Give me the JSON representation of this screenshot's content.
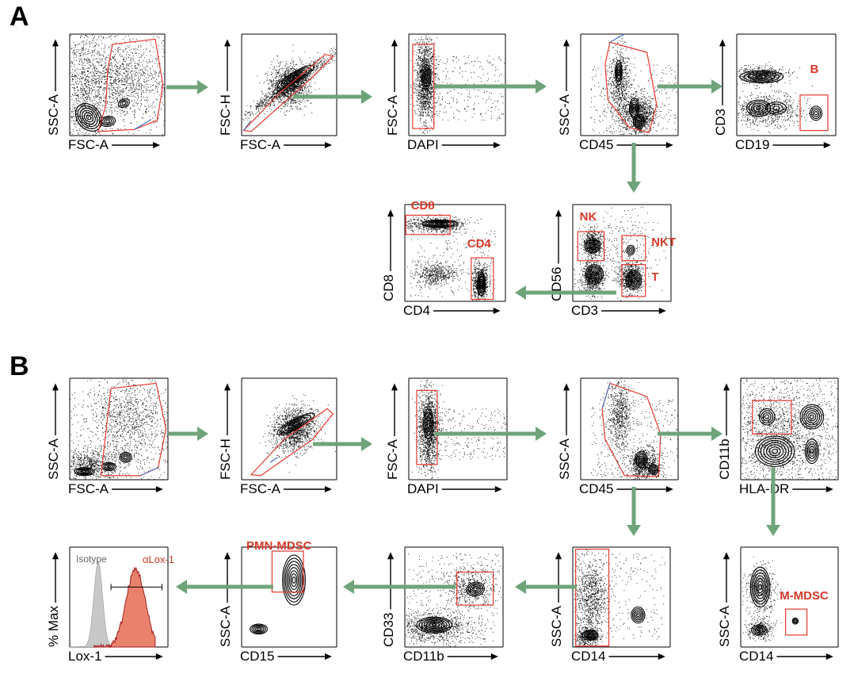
{
  "panels": [
    {
      "letter": "A"
    },
    {
      "letter": "B"
    }
  ],
  "colors": {
    "gate": "#e8392f",
    "gate_label": "#d63a2a",
    "arrow": "#6fa47a",
    "spine": "#4a72c4",
    "isotype_fill": "#c8c8c8",
    "lox_fill": "#e9826d",
    "lox_line": "#a41c1c"
  },
  "plots": [
    {
      "id": "a1",
      "xlabel": "FSC-A",
      "ylabel": "SSC-A",
      "gates": [],
      "type": "scatter"
    },
    {
      "id": "a2",
      "xlabel": "FSC-A",
      "ylabel": "FSC-H",
      "gates": [],
      "type": "scatter"
    },
    {
      "id": "a3",
      "xlabel": "DAPI",
      "ylabel": "FSC-A",
      "gates": [],
      "type": "scatter"
    },
    {
      "id": "a4",
      "xlabel": "CD45",
      "ylabel": "SSC-A",
      "gates": [],
      "type": "scatter"
    },
    {
      "id": "a5",
      "xlabel": "CD19",
      "ylabel": "CD3",
      "gates": [
        "B"
      ],
      "type": "scatter"
    },
    {
      "id": "a6",
      "xlabel": "CD3",
      "ylabel": "CD56",
      "gates": [
        "NK",
        "NKT",
        "T"
      ],
      "type": "scatter"
    },
    {
      "id": "a7",
      "xlabel": "CD4",
      "ylabel": "CD8",
      "gates": [
        "CD8",
        "CD4"
      ],
      "type": "scatter"
    },
    {
      "id": "b1",
      "xlabel": "FSC-A",
      "ylabel": "SSC-A",
      "gates": [],
      "type": "scatter"
    },
    {
      "id": "b2",
      "xlabel": "FSC-A",
      "ylabel": "FSC-H",
      "gates": [],
      "type": "scatter"
    },
    {
      "id": "b3",
      "xlabel": "DAPI",
      "ylabel": "FSC-A",
      "gates": [],
      "type": "scatter"
    },
    {
      "id": "b4",
      "xlabel": "CD45",
      "ylabel": "SSC-A",
      "gates": [],
      "type": "scatter"
    },
    {
      "id": "b5",
      "xlabel": "HLA-DR",
      "ylabel": "CD11b",
      "gates": [],
      "type": "scatter"
    },
    {
      "id": "b6",
      "xlabel": "CD14",
      "ylabel": "SSC-A",
      "gates": [
        "M-MDSC"
      ],
      "type": "scatter"
    },
    {
      "id": "b7",
      "xlabel": "CD14",
      "ylabel": "SSC-A",
      "gates": [],
      "type": "scatter"
    },
    {
      "id": "b8",
      "xlabel": "CD11b",
      "ylabel": "CD33",
      "gates": [],
      "type": "scatter"
    },
    {
      "id": "b9",
      "xlabel": "CD15",
      "ylabel": "SSC-A",
      "gates": [
        "PMN-MDSC"
      ],
      "type": "scatter"
    },
    {
      "id": "b10",
      "xlabel": "Lox-1",
      "ylabel": "% Max",
      "gates": [],
      "type": "histogram",
      "legend": [
        "Isotype",
        "αLox-1"
      ]
    }
  ]
}
